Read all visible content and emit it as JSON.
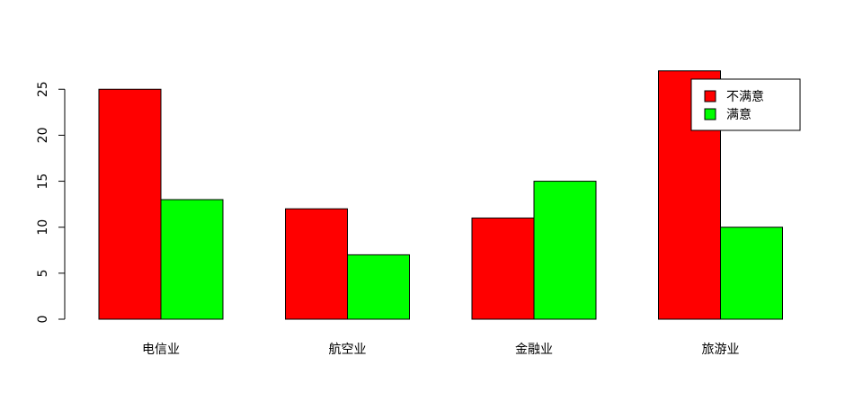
{
  "chart_data": {
    "type": "bar",
    "categories": [
      "电信业",
      "航空业",
      "金融业",
      "旅游业"
    ],
    "series": [
      {
        "name": "不满意",
        "values": [
          25,
          12,
          11,
          27
        ],
        "color": "#ff0000"
      },
      {
        "name": "满意",
        "values": [
          13,
          7,
          15,
          10
        ],
        "color": "#00ff00"
      }
    ],
    "ylim": [
      0,
      25
    ],
    "yticks": [
      0,
      5,
      10,
      15,
      20,
      25
    ],
    "grid": false,
    "legend_position": "top-right"
  }
}
